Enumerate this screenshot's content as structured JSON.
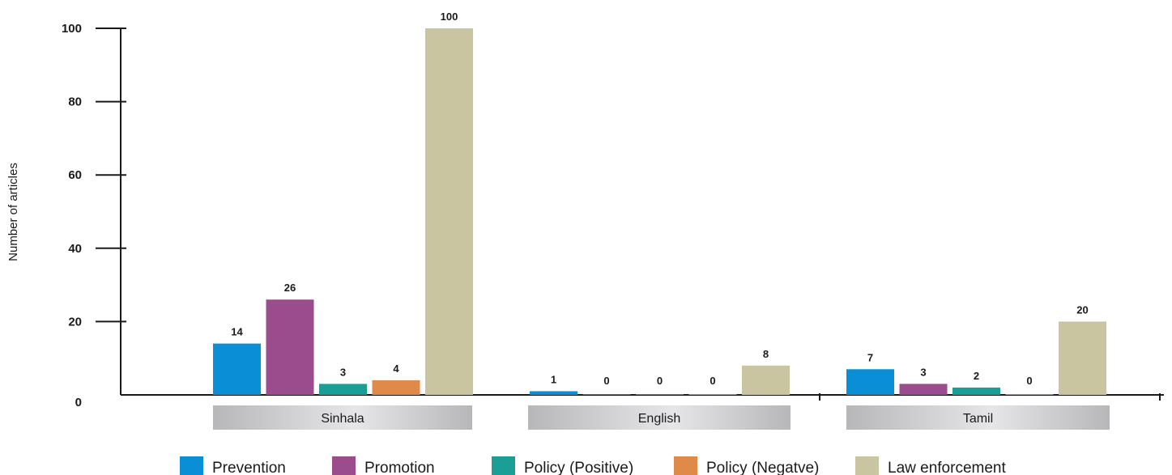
{
  "chart_data": {
    "type": "bar",
    "title": "",
    "xlabel": "",
    "ylabel": "Number of articles",
    "ylim": [
      0,
      100
    ],
    "yticks": [
      0,
      20,
      40,
      60,
      80,
      100
    ],
    "grid": false,
    "legend_position": "bottom",
    "categories": [
      "Sinhala",
      "English",
      "Tamil"
    ],
    "series": [
      {
        "name": "Prevention",
        "color": "#0a8fd6",
        "values": [
          14,
          1,
          7
        ]
      },
      {
        "name": "Promotion",
        "color": "#9a4c8c",
        "values": [
          26,
          0,
          3
        ]
      },
      {
        "name": "Policy (Positive)",
        "color": "#1a9e95",
        "values": [
          3,
          0,
          2
        ]
      },
      {
        "name": "Policy (Negatve)",
        "color": "#e08a4a",
        "values": [
          4,
          0,
          0
        ]
      },
      {
        "name": "Law enforcement",
        "color": "#c8c5a0",
        "values": [
          100,
          8,
          20
        ]
      }
    ]
  }
}
